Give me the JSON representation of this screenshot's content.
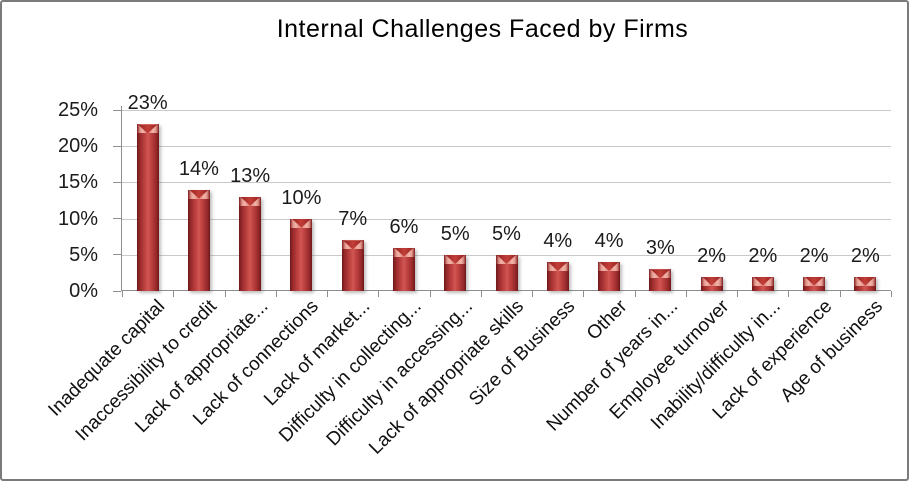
{
  "chart_data": {
    "type": "bar",
    "title": "Internal Challenges Faced by Firms",
    "categories": [
      "Inadequate capital",
      "Inaccessibility to credit",
      "Lack of appropriate...",
      "Lack of connections",
      "Lack of market...",
      "Difficulty in collecting...",
      "Difficulty in accessing...",
      "Lack of appropriate skills",
      "Size of Business",
      "Other",
      "Number of years in...",
      "Employee turnover",
      "Inability/difficulty in...",
      "Lack of experience",
      "Age of business"
    ],
    "values": [
      23,
      14,
      13,
      10,
      7,
      6,
      5,
      5,
      4,
      4,
      3,
      2,
      2,
      2,
      2
    ],
    "value_labels": [
      "23%",
      "14%",
      "13%",
      "10%",
      "7%",
      "6%",
      "5%",
      "5%",
      "4%",
      "4%",
      "3%",
      "2%",
      "2%",
      "2%",
      "2%"
    ],
    "xlabel": "",
    "ylabel": "",
    "ylim": [
      0,
      25
    ],
    "yticks": [
      0,
      5,
      10,
      15,
      20,
      25
    ],
    "ytick_labels": [
      "0%",
      "5%",
      "10%",
      "15%",
      "20%",
      "25%"
    ],
    "grid": "horizontal",
    "legend": "none",
    "data_label_position": "above-bar",
    "x_label_rotation_deg": -45
  },
  "colors": {
    "bar_fill": "#c0504d",
    "bar_edge_dark": "#6d181a",
    "bar_center_light": "#d05654",
    "bar_bevel_light": "#f2b4a8",
    "gridline": "#c9c9c9",
    "axis": "#8e8e8e",
    "text": "#1b1b1b",
    "background": "#ffffff",
    "frame_border": "#7b7b7b"
  }
}
